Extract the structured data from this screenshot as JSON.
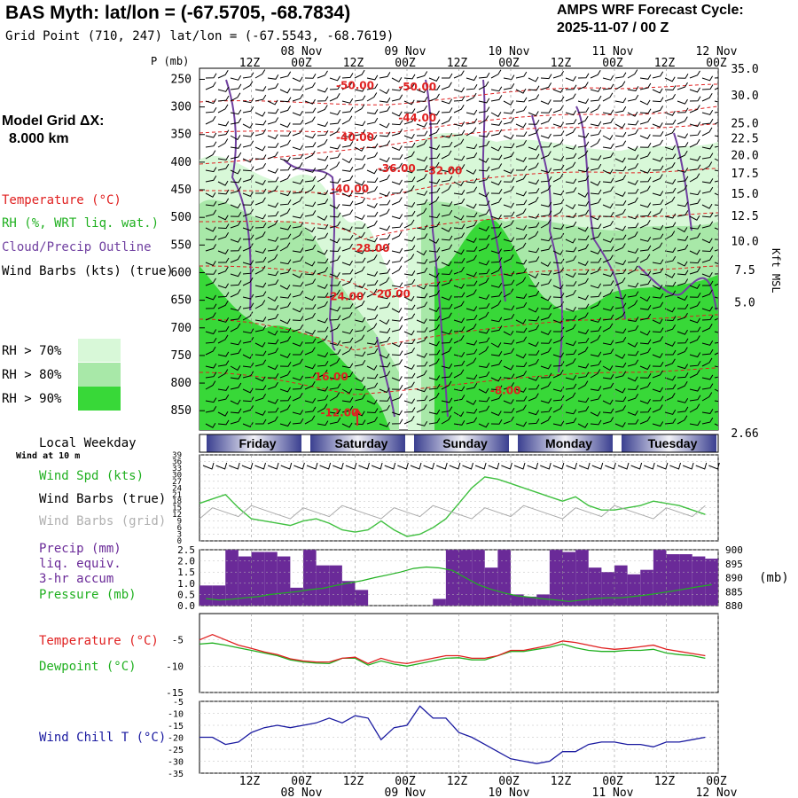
{
  "header": {
    "title": "BAS Myth:  lat/lon = (-67.5705, -68.7834)",
    "gridpoint": "Grid Point (710, 247) lat/lon = (-67.5543, -68.7619)",
    "cycle_line1": "AMPS WRF Forecast Cycle:",
    "cycle_line2": "2025-11-07 / 00  Z"
  },
  "side": {
    "model_grid_line1": "Model Grid ΔX:",
    "model_grid_line2": "8.000 km",
    "temperature": "Temperature (°C)",
    "rh": "RH (%, WRT liq. wat.)",
    "cloud": "Cloud/Precip Outline",
    "barbs": "Wind Barbs (kts) (true)",
    "rh70": "RH > 70%",
    "rh80": "RH > 80%",
    "rh90": "RH > 90%",
    "local_weekday": "Local Weekday",
    "wind_at_10m": "Wind at 10 m",
    "wind_spd": "Wind Spd (kts)",
    "barbs_true": "Wind Barbs (true)",
    "barbs_grid": "Wind Barbs (grid)",
    "precip1": "Precip (mm)",
    "precip2": "liq. equiv.",
    "precip3": "3-hr accum",
    "pressure": "Pressure (mb)",
    "temperature2": "Temperature (°C)",
    "dewpoint": "Dewpoint (°C)",
    "windchill": "Wind Chill T (°C)",
    "mb_unit": "(mb)",
    "p_unit": "P (mb)",
    "kft": "Kft MSL"
  },
  "colors": {
    "temp": "#e02020",
    "rh70": "#d8f8d8",
    "rh80": "#a8e8a8",
    "rh90": "#38d838",
    "cloud": "#7040a0",
    "precip": "#6a2a98",
    "pressure": "#20b020",
    "windspd": "#40c040",
    "windchill": "#1a1aa0",
    "day_fill": "#3a3f90"
  },
  "chart_data": [
    {
      "name": "cross_section",
      "type": "heatmap",
      "time_ticks_top": [
        "12Z",
        "00Z",
        "12Z",
        "00Z",
        "12Z",
        "00Z",
        "12Z",
        "00Z",
        "12Z",
        "00Z"
      ],
      "date_labels": [
        "08 Nov",
        "09 Nov",
        "10 Nov",
        "11 Nov",
        "12 Nov"
      ],
      "pressure_levels": [
        "250",
        "300",
        "350",
        "400",
        "450",
        "500",
        "550",
        "600",
        "650",
        "700",
        "750",
        "800",
        "850"
      ],
      "height_labels_kft": [
        "35.0",
        "30.0",
        "25.0",
        "22.5",
        "20.0",
        "17.5",
        "15.0",
        "12.5",
        "10.0",
        "7.5",
        "5.0",
        "2.66"
      ],
      "temperature_contours": [
        {
          "label": "-50.00",
          "t": 30,
          "p": 268
        },
        {
          "label": "-50.00",
          "t": 42,
          "p": 270
        },
        {
          "label": "-44.00",
          "t": 42,
          "p": 326
        },
        {
          "label": "-40.00",
          "t": 30,
          "p": 362
        },
        {
          "label": "-36.00",
          "t": 38,
          "p": 418
        },
        {
          "label": "-32.00",
          "t": 47,
          "p": 422
        },
        {
          "label": "-40.00",
          "t": 29,
          "p": 455
        },
        {
          "label": "-28.00",
          "t": 33,
          "p": 562
        },
        {
          "label": "-24.00",
          "t": 28,
          "p": 650
        },
        {
          "label": "-20.00",
          "t": 37,
          "p": 645
        },
        {
          "label": "-16.00",
          "t": 25,
          "p": 795
        },
        {
          "label": "-8.00",
          "t": 59,
          "p": 820
        },
        {
          "label": "-12.00",
          "t": 27,
          "p": 860
        }
      ],
      "rh_thresholds_pct": [
        70,
        80,
        90
      ]
    },
    {
      "name": "local_weekday",
      "type": "table",
      "days": [
        "Friday",
        "Saturday",
        "Sunday",
        "Monday",
        "Tuesday"
      ]
    },
    {
      "name": "wind_speed",
      "type": "line",
      "x_hours": [
        0,
        3,
        6,
        9,
        12,
        15,
        18,
        21,
        24,
        27,
        30,
        33,
        36,
        39,
        42,
        45,
        48,
        51,
        54,
        57,
        60,
        63,
        66,
        69,
        72,
        75,
        78,
        81,
        84,
        87,
        90,
        93,
        96,
        99,
        102,
        105,
        108,
        111,
        114,
        117
      ],
      "series": [
        {
          "name": "Wind Spd (kts)",
          "values": [
            17,
            19,
            21,
            15,
            10,
            9,
            8,
            7,
            9,
            10,
            8,
            5,
            4,
            5,
            9,
            5,
            2,
            3,
            6,
            10,
            17,
            24,
            29,
            28,
            26,
            24,
            22,
            20,
            18,
            20,
            16,
            14,
            14,
            15,
            16,
            18,
            17,
            16,
            14,
            12
          ]
        }
      ],
      "yticks": [
        "39",
        "36",
        "33",
        "30",
        "27",
        "24",
        "21",
        "18",
        "15",
        "12",
        "9",
        "6",
        "3",
        "0"
      ],
      "ylim": [
        0,
        39
      ]
    },
    {
      "name": "precip_pressure",
      "type": "bar",
      "x_hours": [
        0,
        3,
        6,
        9,
        12,
        15,
        18,
        21,
        24,
        27,
        30,
        33,
        36,
        39,
        42,
        45,
        48,
        51,
        54,
        57,
        60,
        63,
        66,
        69,
        72,
        75,
        78,
        81,
        84,
        87,
        90,
        93,
        96,
        99,
        102,
        105,
        108,
        111,
        114,
        117
      ],
      "series": [
        {
          "name": "Precip (mm)",
          "values": [
            0.9,
            0.9,
            2.5,
            2.2,
            2.4,
            2.4,
            2.2,
            0.8,
            2.5,
            1.8,
            1.8,
            1.1,
            0.7,
            0,
            0,
            0,
            0,
            0,
            0.3,
            2.5,
            2.5,
            2.5,
            1.7,
            2.5,
            0.5,
            0.4,
            0.5,
            2.5,
            2.4,
            2.5,
            1.7,
            1.5,
            1.8,
            1.4,
            1.6,
            2.5,
            2.3,
            2.3,
            2.2,
            2.1
          ]
        },
        {
          "name": "Pressure (mb)",
          "values": [
            882.5,
            882.0,
            882.3,
            882.8,
            883.2,
            884.0,
            884.5,
            885.0,
            885.7,
            886.2,
            887.2,
            888.1,
            888.9,
            890.0,
            891.0,
            892.0,
            893.3,
            893.8,
            893.5,
            892.6,
            890.0,
            887.5,
            885.8,
            884.5,
            883.5,
            883.0,
            882.4,
            882.0,
            881.5,
            882.0,
            882.5,
            882.8,
            882.8,
            883.3,
            883.8,
            884.5,
            885.2,
            886.0,
            886.8,
            887.5
          ]
        }
      ],
      "yticks_left": [
        "2.5",
        "2.0",
        "1.5",
        "1.0",
        "0.5",
        "0.0"
      ],
      "yticks_right": [
        "900",
        "895",
        "890",
        "885",
        "880"
      ],
      "ylim": [
        0,
        2.5
      ],
      "ylim_right": [
        880,
        900
      ]
    },
    {
      "name": "temperature_dewpoint",
      "type": "line",
      "x_hours": [
        0,
        3,
        6,
        9,
        12,
        15,
        18,
        21,
        24,
        27,
        30,
        33,
        36,
        39,
        42,
        45,
        48,
        51,
        54,
        57,
        60,
        63,
        66,
        69,
        72,
        75,
        78,
        81,
        84,
        87,
        90,
        93,
        96,
        99,
        102,
        105,
        108,
        111,
        114,
        117
      ],
      "series": [
        {
          "name": "Temperature (°C)",
          "values": [
            -5.0,
            -4.0,
            -5.0,
            -6.0,
            -6.6,
            -7.3,
            -7.8,
            -8.6,
            -9.0,
            -9.2,
            -9.2,
            -8.5,
            -8.3,
            -9.5,
            -8.5,
            -9.2,
            -9.5,
            -9.0,
            -8.5,
            -8.0,
            -8.0,
            -8.5,
            -8.5,
            -8.0,
            -7.0,
            -7.0,
            -6.5,
            -6.0,
            -5.2,
            -5.5,
            -6.0,
            -6.5,
            -6.8,
            -6.6,
            -6.3,
            -6.0,
            -6.8,
            -7.2,
            -7.6,
            -8.0
          ]
        },
        {
          "name": "Dewpoint (°C)",
          "values": [
            -5.8,
            -5.6,
            -6.0,
            -6.5,
            -7.0,
            -7.5,
            -8.0,
            -8.8,
            -9.2,
            -9.4,
            -9.5,
            -8.5,
            -8.5,
            -9.8,
            -9.0,
            -9.6,
            -10.0,
            -9.5,
            -9.0,
            -8.5,
            -8.4,
            -8.8,
            -8.8,
            -8.0,
            -7.2,
            -7.2,
            -6.8,
            -6.4,
            -5.8,
            -6.5,
            -7.0,
            -7.2,
            -7.2,
            -7.0,
            -7.0,
            -6.8,
            -7.5,
            -7.8,
            -8.0,
            -8.5
          ]
        }
      ],
      "yticks": [
        "-5",
        "-10",
        "-15"
      ],
      "ylim": [
        -15,
        0
      ]
    },
    {
      "name": "wind_chill",
      "type": "line",
      "x_hours": [
        0,
        3,
        6,
        9,
        12,
        15,
        18,
        21,
        24,
        27,
        30,
        33,
        36,
        39,
        42,
        45,
        48,
        51,
        54,
        57,
        60,
        63,
        66,
        69,
        72,
        75,
        78,
        81,
        84,
        87,
        90,
        93,
        96,
        99,
        102,
        105,
        108,
        111,
        114,
        117
      ],
      "series": [
        {
          "name": "Wind Chill T (°C)",
          "values": [
            -20,
            -20,
            -23,
            -22,
            -18,
            -16,
            -15,
            -16,
            -15,
            -14,
            -12,
            -14,
            -11,
            -12,
            -21,
            -16,
            -15,
            -7,
            -12,
            -12,
            -18,
            -20,
            -23,
            -26,
            -29,
            -30,
            -31,
            -30,
            -26,
            -26,
            -23,
            -22,
            -22,
            -23,
            -23,
            -24,
            -22,
            -22,
            -21,
            -20
          ]
        }
      ],
      "yticks": [
        "-5",
        "-10",
        "-15",
        "-20",
        "-25",
        "-30",
        "-35"
      ],
      "ylim": [
        -35,
        -5
      ]
    }
  ],
  "bottom_axis": {
    "time_ticks": [
      "12Z",
      "00Z",
      "12Z",
      "00Z",
      "12Z",
      "00Z",
      "12Z",
      "00Z",
      "12Z",
      "00Z"
    ],
    "date_labels": [
      "08 Nov",
      "09 Nov",
      "10 Nov",
      "11 Nov",
      "12 Nov"
    ]
  }
}
